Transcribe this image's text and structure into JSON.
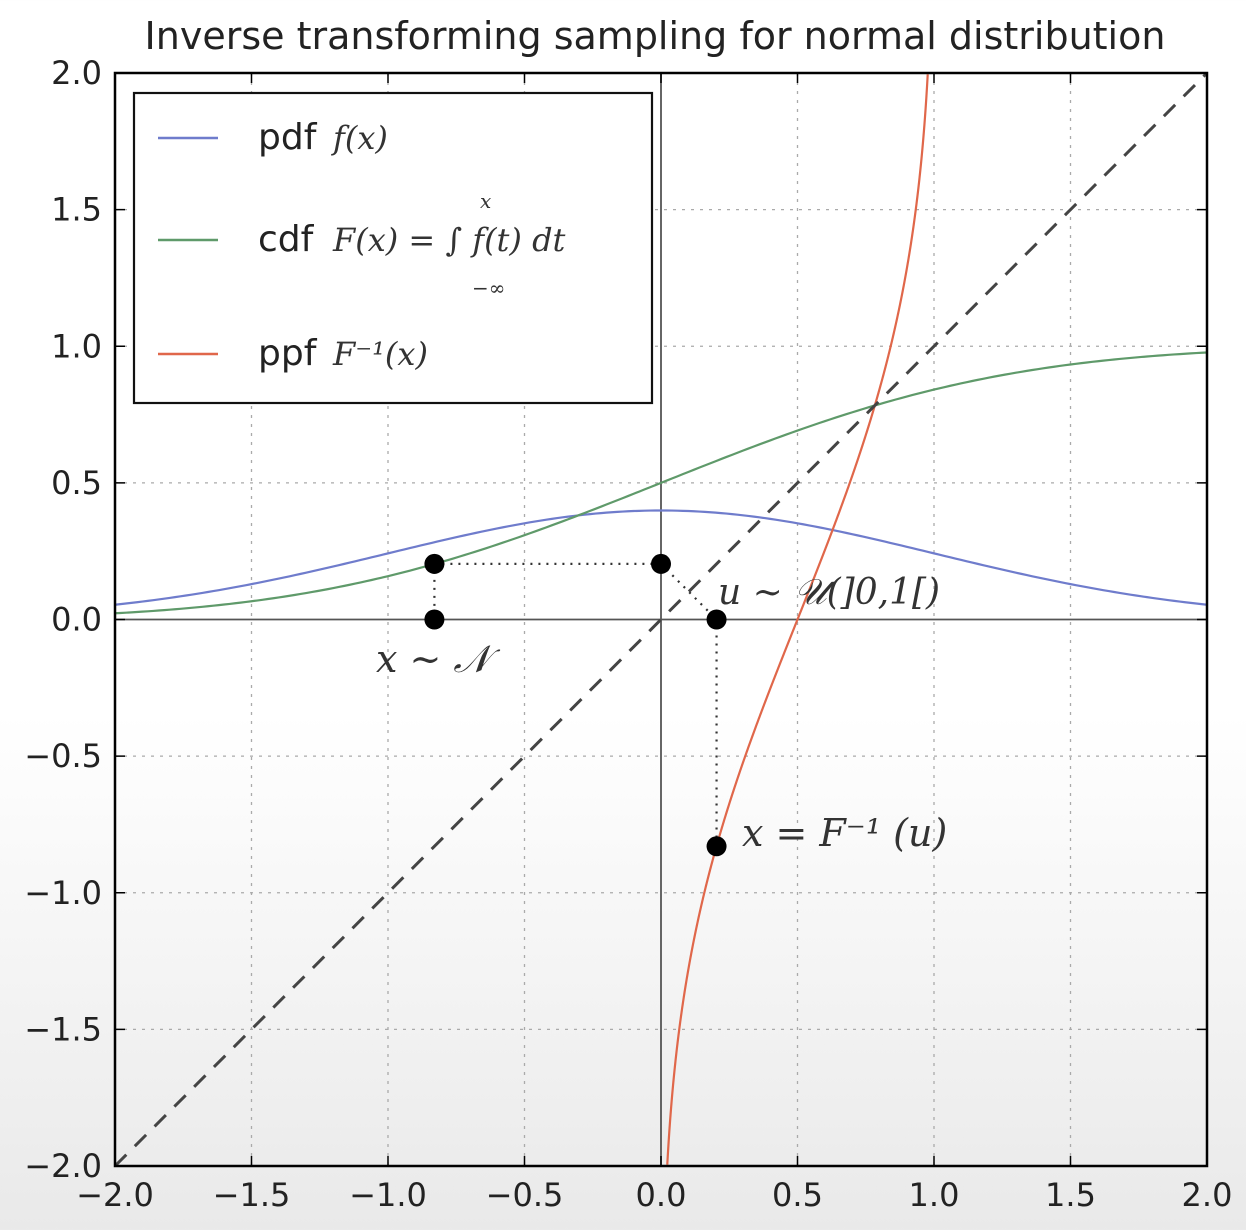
{
  "chart_data": {
    "type": "line",
    "title": "Inverse transforming sampling for normal distribution",
    "xlim": [
      -2.0,
      2.0
    ],
    "ylim": [
      -2.0,
      2.0
    ],
    "x_ticks": [
      "−2.0",
      "−1.5",
      "−1.0",
      "−0.5",
      "0.0",
      "0.5",
      "1.0",
      "1.5",
      "2.0"
    ],
    "y_ticks": [
      "2.0",
      "1.5",
      "1.0",
      "0.5",
      "0.0",
      "−0.5",
      "−1.0",
      "−1.5",
      "−2.0"
    ],
    "grid": true,
    "legend_position": "upper-left",
    "series": [
      {
        "name": "pdf",
        "label_math": "f(x)",
        "color": "#6f7ccc",
        "distribution": "normal pdf (mean 0, sd 1)",
        "x_range": [
          -2.0,
          2.0
        ]
      },
      {
        "name": "cdf",
        "label_math": "F(x) = ∫ f(t) dt",
        "integral_upper": "x",
        "integral_lower": "−∞",
        "color": "#5f9a6a",
        "distribution": "normal cdf (mean 0, sd 1)",
        "x_range": [
          -2.0,
          2.0
        ]
      },
      {
        "name": "ppf",
        "label_math": "F⁻¹(x)",
        "color": "#e0674a",
        "distribution": "normal inverse cdf (mean 0, sd 1)",
        "u_range": [
          0.001,
          0.9999
        ]
      },
      {
        "name": "",
        "style": "dashed",
        "color": "#444444",
        "x": [
          -2.0,
          2.0
        ],
        "y": [
          -2.0,
          2.0
        ]
      }
    ],
    "sample_points": [
      {
        "x": -0.83,
        "y": 0.2035
      },
      {
        "x": -0.83,
        "y": 0.0
      },
      {
        "x": 0.0,
        "y": 0.2035
      },
      {
        "x": 0.2035,
        "y": 0.0
      },
      {
        "x": 0.2035,
        "y": -0.83
      }
    ],
    "annotations": {
      "x_normal": "x ∼ 𝒩",
      "u_uniform": "u ∼ 𝒰(]0,1[)",
      "inverse": "x = F⁻¹ (u)"
    }
  }
}
